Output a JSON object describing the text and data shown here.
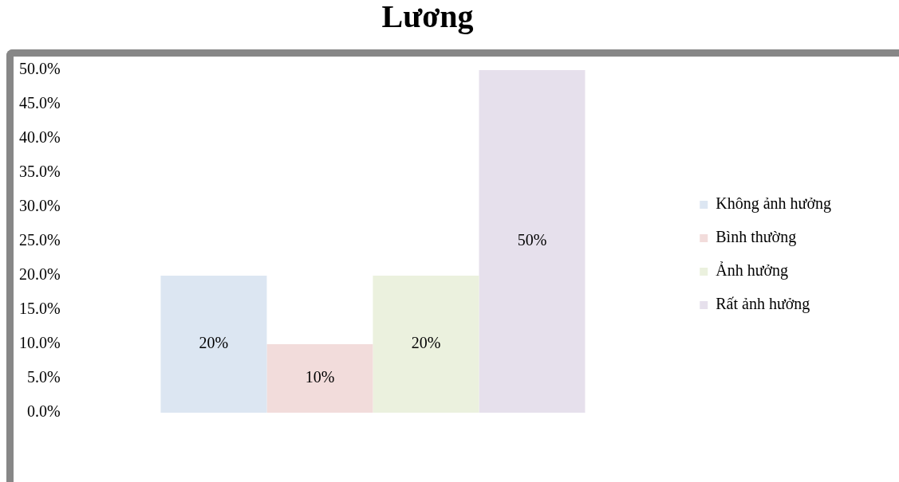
{
  "chart_data": {
    "type": "bar",
    "title": "Lương",
    "categories": [
      null
    ],
    "series": [
      {
        "name": "Không ảnh hưởng",
        "color": "#dce6f2",
        "values": [
          20
        ],
        "value_labels": [
          "20%"
        ]
      },
      {
        "name": "Bình thường",
        "color": "#f2dcdb",
        "values": [
          10
        ],
        "value_labels": [
          "10%"
        ]
      },
      {
        "name": "Ảnh hưởng",
        "color": "#ebf1de",
        "values": [
          20
        ],
        "value_labels": [
          "20%"
        ]
      },
      {
        "name": "Rất ảnh hưởng",
        "color": "#e6e0ec",
        "values": [
          50
        ],
        "value_labels": [
          "50%"
        ]
      }
    ],
    "ylim": [
      0,
      50
    ],
    "yticks": [
      {
        "value": 0,
        "label": "0.0%"
      },
      {
        "value": 5,
        "label": "5.0%"
      },
      {
        "value": 10,
        "label": "10.0%"
      },
      {
        "value": 15,
        "label": "15.0%"
      },
      {
        "value": 20,
        "label": "20.0%"
      },
      {
        "value": 25,
        "label": "25.0%"
      },
      {
        "value": 30,
        "label": "30.0%"
      },
      {
        "value": 35,
        "label": "35.0%"
      },
      {
        "value": 40,
        "label": "40.0%"
      },
      {
        "value": 45,
        "label": "45.0%"
      },
      {
        "value": 50,
        "label": "50.0%"
      }
    ],
    "legend": "right"
  }
}
